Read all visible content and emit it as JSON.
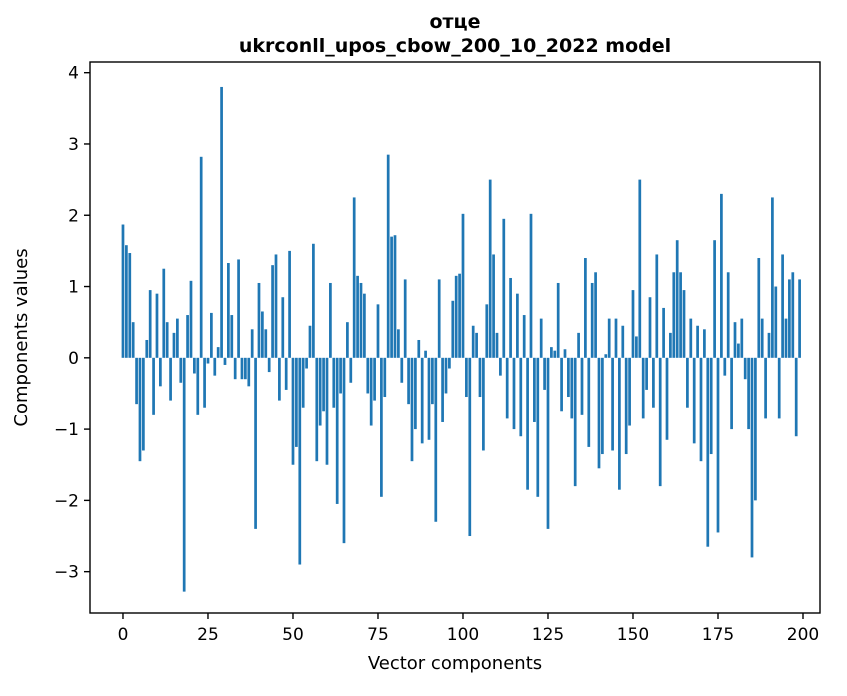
{
  "chart_data": {
    "type": "bar",
    "title": "отце",
    "subtitle": "ukrconll_upos_cbow_200_10_2022 model",
    "xlabel": "Vector components",
    "ylabel": "Components values",
    "bar_color": "#1f77b4",
    "background_color": "#ffffff",
    "spine_color": "#000000",
    "grid": false,
    "legend": null,
    "x_ticks": [
      0,
      25,
      50,
      75,
      100,
      125,
      150,
      175,
      200
    ],
    "y_ticks": [
      -3,
      -2,
      -1,
      0,
      1,
      2,
      3,
      4
    ],
    "xlim": [
      -9.7,
      205
    ],
    "ylim": [
      -3.58,
      4.15
    ],
    "x": "component index 0..199",
    "values": [
      1.87,
      1.58,
      1.47,
      0.5,
      -0.65,
      -1.45,
      -1.3,
      0.25,
      0.95,
      -0.8,
      0.9,
      -0.4,
      1.25,
      0.5,
      -0.6,
      0.35,
      0.55,
      -0.35,
      -3.28,
      0.6,
      1.08,
      -0.22,
      -0.8,
      2.82,
      -0.7,
      -0.08,
      0.63,
      -0.25,
      0.15,
      3.8,
      -0.1,
      1.33,
      0.6,
      -0.3,
      1.38,
      -0.3,
      -0.3,
      -0.4,
      0.4,
      -2.4,
      1.05,
      0.65,
      0.4,
      -0.2,
      1.3,
      1.45,
      -0.6,
      0.85,
      -0.45,
      1.5,
      -1.5,
      -1.25,
      -2.9,
      -0.7,
      -0.15,
      0.45,
      1.6,
      -1.45,
      -0.95,
      -0.75,
      -1.5,
      1.05,
      -0.7,
      -2.05,
      -0.5,
      -2.6,
      0.5,
      -0.35,
      2.25,
      1.15,
      1.05,
      0.9,
      -0.5,
      -0.95,
      -0.6,
      0.75,
      -1.95,
      -0.55,
      2.85,
      1.7,
      1.72,
      0.4,
      -0.35,
      1.1,
      -0.65,
      -1.45,
      -1.0,
      0.25,
      -1.2,
      0.1,
      -1.15,
      -0.65,
      -2.3,
      1.1,
      -0.9,
      -0.5,
      -0.15,
      0.8,
      1.15,
      1.18,
      2.02,
      -0.55,
      -2.5,
      0.45,
      0.35,
      -0.55,
      -1.3,
      0.75,
      2.5,
      1.45,
      0.35,
      -0.25,
      1.95,
      -0.85,
      1.12,
      -1.0,
      0.9,
      -1.1,
      0.6,
      -1.85,
      2.02,
      -0.9,
      -1.95,
      0.55,
      -0.45,
      -2.4,
      0.15,
      0.1,
      1.05,
      -0.75,
      0.12,
      -0.55,
      -0.85,
      -1.8,
      0.35,
      -0.8,
      1.4,
      -1.25,
      1.05,
      1.2,
      -1.55,
      -1.35,
      0.05,
      0.55,
      -1.3,
      0.55,
      -1.85,
      0.45,
      -1.35,
      -0.95,
      0.95,
      0.3,
      2.5,
      -0.85,
      -0.45,
      0.85,
      -0.7,
      1.45,
      -1.8,
      0.7,
      -1.15,
      0.35,
      1.2,
      1.65,
      1.2,
      0.95,
      -0.7,
      0.55,
      -1.2,
      0.45,
      -1.45,
      0.4,
      -2.65,
      -1.35,
      1.65,
      -2.45,
      2.3,
      -0.25,
      1.2,
      -1.0,
      0.5,
      0.2,
      0.55,
      -0.3,
      -1.0,
      -2.8,
      -2.0,
      1.4,
      0.55,
      -0.85,
      0.35,
      2.25,
      1.0,
      -0.85,
      1.45,
      0.55,
      1.1,
      1.2,
      -1.1,
      1.1
    ]
  }
}
